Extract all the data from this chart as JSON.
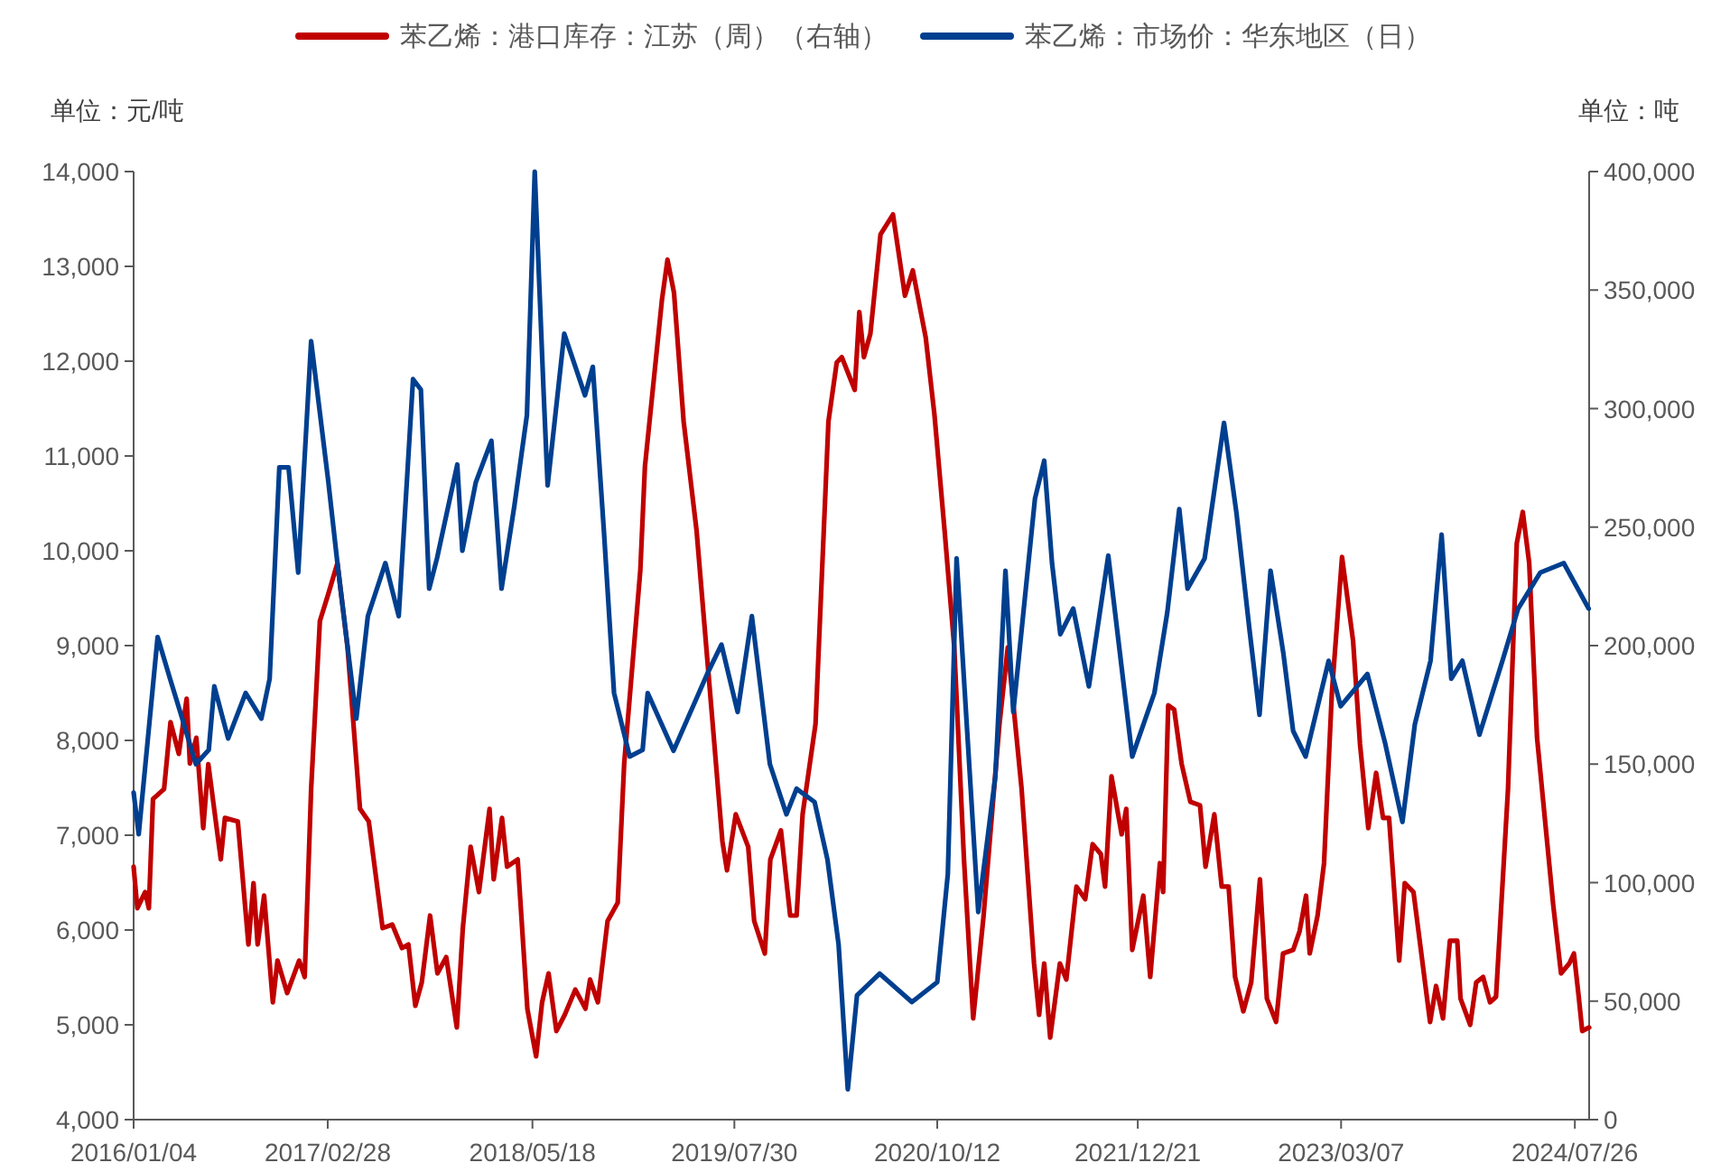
{
  "chart_data": {
    "type": "line",
    "xlim": [
      "2016-01-04",
      "2024-08-26"
    ],
    "xticks": [
      {
        "value": "2016-01-04",
        "label": "2016/01/04"
      },
      {
        "value": "2017-02-28",
        "label": "2017/02/28"
      },
      {
        "value": "2018-05-18",
        "label": "2018/05/18"
      },
      {
        "value": "2019-07-30",
        "label": "2019/07/30"
      },
      {
        "value": "2020-10-12",
        "label": "2020/10/12"
      },
      {
        "value": "2021-12-21",
        "label": "2021/12/21"
      },
      {
        "value": "2023-03-07",
        "label": "2023/03/07"
      },
      {
        "value": "2024-07-26",
        "label": "2024/07/26"
      }
    ],
    "ylim": [
      4000,
      14000
    ],
    "yticks": [
      {
        "value": 4000,
        "label": "4,000"
      },
      {
        "value": 5000,
        "label": "5,000"
      },
      {
        "value": 6000,
        "label": "6,000"
      },
      {
        "value": 7000,
        "label": "7,000"
      },
      {
        "value": 8000,
        "label": "8,000"
      },
      {
        "value": 9000,
        "label": "9,000"
      },
      {
        "value": 10000,
        "label": "10,000"
      },
      {
        "value": 11000,
        "label": "11,000"
      },
      {
        "value": 12000,
        "label": "12,000"
      },
      {
        "value": 13000,
        "label": "13,000"
      },
      {
        "value": 14000,
        "label": "14,000"
      }
    ],
    "y2lim": [
      0,
      400000
    ],
    "y2ticks": [
      0,
      {
        "value": 50000,
        "label": "50,000"
      },
      {
        "value": 100000,
        "label": "100,000"
      },
      {
        "value": 150000,
        "label": "150,000"
      },
      {
        "value": 200000,
        "label": "200,000"
      },
      {
        "value": 250000,
        "label": "250,000"
      },
      {
        "value": 300000,
        "label": "300,000"
      },
      {
        "value": 350000,
        "label": "350,000"
      },
      {
        "value": 400000,
        "label": "400,000"
      }
    ],
    "legend": "top",
    "annotations": [
      "单位：元/吨",
      "单位：吨"
    ],
    "series": [
      {
        "name": "苯乙烯：港口库存：江苏（周）（右轴）",
        "color": "#c00000",
        "axis": "y2",
        "x": [
          "2016-01-04",
          "2016-01-12",
          "2016-01-29",
          "2016-02-06",
          "2016-02-15",
          "2016-03-10",
          "2016-03-24",
          "2016-04-11",
          "2016-04-28",
          "2016-05-05",
          "2016-05-19",
          "2016-06-03",
          "2016-06-14",
          "2016-07-11",
          "2016-07-20",
          "2016-08-17",
          "2016-09-09",
          "2016-09-20",
          "2016-09-29",
          "2016-10-13",
          "2016-11-01",
          "2016-11-11",
          "2016-12-02",
          "2016-12-28",
          "2017-01-09",
          "2017-01-23",
          "2017-02-11",
          "2017-02-28",
          "2017-03-21",
          "2017-04-12",
          "2017-05-09",
          "2017-05-28",
          "2017-06-27",
          "2017-07-18",
          "2017-08-08",
          "2017-08-22",
          "2017-09-06",
          "2017-09-20",
          "2017-10-08",
          "2017-10-24",
          "2017-11-12",
          "2017-12-05",
          "2017-12-18",
          "2018-01-04",
          "2018-01-22",
          "2018-02-14",
          "2018-02-23",
          "2018-03-13",
          "2018-03-24",
          "2018-04-16",
          "2018-05-07",
          "2018-05-26",
          "2018-06-08",
          "2018-06-22",
          "2018-07-09",
          "2018-07-27",
          "2018-08-19",
          "2018-09-10",
          "2018-09-20",
          "2018-10-07",
          "2018-10-28",
          "2018-11-19",
          "2018-12-03",
          "2019-01-07",
          "2019-01-17",
          "2019-02-23",
          "2019-03-07",
          "2019-03-21",
          "2019-04-11",
          "2019-05-09",
          "2019-06-13",
          "2019-07-04",
          "2019-07-14",
          "2019-08-02",
          "2019-08-29",
          "2019-09-11",
          "2019-10-04",
          "2019-10-16",
          "2019-11-08",
          "2019-11-28",
          "2019-12-12",
          "2019-12-25",
          "2020-01-22",
          "2020-02-19",
          "2020-03-08",
          "2020-03-19",
          "2020-04-16",
          "2020-04-26",
          "2020-05-06",
          "2020-05-20",
          "2020-06-11",
          "2020-07-08",
          "2020-08-03",
          "2020-08-20",
          "2020-09-17",
          "2020-10-06",
          "2020-10-28",
          "2020-11-18",
          "2020-12-09",
          "2020-12-29",
          "2021-01-20",
          "2021-02-24",
          "2021-03-14",
          "2021-04-13",
          "2021-05-10",
          "2021-05-21",
          "2021-06-01",
          "2021-06-14",
          "2021-07-05",
          "2021-07-19",
          "2021-08-10",
          "2021-08-29",
          "2021-09-14",
          "2021-10-02",
          "2021-10-11",
          "2021-10-25",
          "2021-11-16",
          "2021-11-26",
          "2021-12-09",
          "2022-01-02",
          "2022-01-17",
          "2022-02-07",
          "2022-02-14",
          "2022-02-25",
          "2022-03-10",
          "2022-03-26",
          "2022-04-14",
          "2022-05-05",
          "2022-05-17",
          "2022-06-05",
          "2022-06-21",
          "2022-07-06",
          "2022-07-20",
          "2022-08-07",
          "2022-08-24",
          "2022-09-12",
          "2022-09-27",
          "2022-10-17",
          "2022-11-01",
          "2022-11-23",
          "2022-12-07",
          "2022-12-21",
          "2022-12-29",
          "2023-01-15",
          "2023-01-29",
          "2023-02-15",
          "2023-03-09",
          "2023-04-02",
          "2023-04-17",
          "2023-05-05",
          "2023-05-22",
          "2023-06-06",
          "2023-06-19",
          "2023-07-11",
          "2023-07-23",
          "2023-08-11",
          "2023-08-20",
          "2023-09-16",
          "2023-09-29",
          "2023-10-14",
          "2023-10-29",
          "2023-11-14",
          "2023-11-21",
          "2023-12-12",
          "2023-12-25",
          "2024-01-09",
          "2024-01-24",
          "2024-02-06",
          "2024-03-03",
          "2024-03-22",
          "2024-04-04",
          "2024-04-18",
          "2024-05-05",
          "2024-06-09",
          "2024-06-26",
          "2024-07-14",
          "2024-07-24",
          "2024-08-03",
          "2024-08-11",
          "2024-08-26"
        ],
        "values": [
          106700,
          89200,
          96000,
          89200,
          135300,
          139500,
          167700,
          154300,
          177600,
          150200,
          161100,
          123000,
          150000,
          109800,
          127300,
          125800,
          73900,
          99800,
          73900,
          94500,
          49500,
          67100,
          53400,
          67100,
          60200,
          139500,
          210400,
          221000,
          234800,
          199200,
          131100,
          125800,
          80800,
          82300,
          72400,
          73900,
          48000,
          57900,
          86100,
          61700,
          68600,
          38900,
          80800,
          115100,
          96000,
          131100,
          101400,
          127300,
          106700,
          109800,
          46800,
          26700,
          49500,
          61700,
          37400,
          44200,
          54900,
          46800,
          59100,
          49500,
          83800,
          91500,
          150200,
          231700,
          275500,
          346000,
          362800,
          349000,
          294500,
          248500,
          166900,
          117400,
          105200,
          128800,
          115100,
          83800,
          70100,
          109800,
          122000,
          86100,
          86100,
          128800,
          166900,
          294500,
          319400,
          321700,
          307900,
          340700,
          321700,
          331600,
          373500,
          381900,
          347600,
          358300,
          330000,
          297300,
          248500,
          199200,
          109800,
          42700,
          84900,
          166900,
          199200,
          139500,
          65900,
          44200,
          65900,
          34600,
          65900,
          59100,
          98300,
          93000,
          116200,
          112000,
          98300,
          144800,
          120400,
          131100,
          71600,
          94500,
          60200,
          108200,
          96000,
          174800,
          173000,
          150200,
          134100,
          132600,
          106700,
          128800,
          98300,
          98300,
          60200,
          45700,
          57900,
          101400,
          51100,
          41200,
          70100,
          71600,
          79500,
          94500,
          70100,
          86100,
          108200,
          180200,
          237400,
          202000,
          158500,
          123000,
          146300,
          127300,
          127300,
          67100,
          99800,
          96000,
          82300,
          41200,
          56400,
          42700,
          75500,
          75500,
          51100,
          40000,
          57900,
          60200,
          49500,
          51800,
          139500,
          243100,
          256400,
          234800,
          161100,
          90700,
          61700,
          65900,
          70100,
          52600,
          37400,
          38900
        ]
      },
      {
        "name": "苯乙烯：市场价：华东地区（日）",
        "color": "#003f8f",
        "x": [
          "2016-01-04",
          "2016-01-15",
          "2016-02-25",
          "2016-03-23",
          "2016-04-14",
          "2016-05-18",
          "2016-06-15",
          "2016-06-27",
          "2016-07-27",
          "2016-09-03",
          "2016-10-07",
          "2016-10-25",
          "2016-11-15",
          "2016-12-05",
          "2016-12-26",
          "2017-01-23",
          "2017-03-01",
          "2017-03-21",
          "2017-05-01",
          "2017-05-26",
          "2017-07-03",
          "2017-08-01",
          "2017-09-01",
          "2017-09-18",
          "2017-10-06",
          "2017-10-23",
          "2017-12-06",
          "2017-12-17",
          "2018-01-15",
          "2018-02-18",
          "2018-03-12",
          "2018-04-09",
          "2018-05-06",
          "2018-05-23",
          "2018-06-11",
          "2018-06-20",
          "2018-07-26",
          "2018-09-09",
          "2018-09-26",
          "2018-10-20",
          "2018-11-11",
          "2018-12-15",
          "2019-01-12",
          "2019-01-23",
          "2019-03-20",
          "2019-06-01",
          "2019-07-02",
          "2019-08-06",
          "2019-09-06",
          "2019-10-15",
          "2019-11-20",
          "2019-12-12",
          "2020-01-20",
          "2020-02-17",
          "2020-03-12",
          "2020-04-01",
          "2020-04-21",
          "2020-06-09",
          "2020-08-18",
          "2020-10-12",
          "2020-11-04",
          "2020-11-23",
          "2020-12-15",
          "2021-01-09",
          "2021-02-15",
          "2021-03-09",
          "2021-03-26",
          "2021-05-12",
          "2021-06-01",
          "2021-06-18",
          "2021-07-06",
          "2021-08-03",
          "2021-09-06",
          "2021-10-18",
          "2021-12-09",
          "2022-01-26",
          "2022-02-23",
          "2022-03-21",
          "2022-04-08",
          "2022-05-15",
          "2022-06-26",
          "2022-07-23",
          "2022-08-20",
          "2022-09-11",
          "2022-10-05",
          "2022-11-02",
          "2022-11-23",
          "2022-12-20",
          "2023-02-08",
          "2023-03-06",
          "2023-05-03",
          "2023-06-11",
          "2023-07-18",
          "2023-08-14",
          "2023-09-17",
          "2023-10-11",
          "2023-11-01",
          "2023-11-25",
          "2024-01-01",
          "2024-02-20",
          "2024-03-25",
          "2024-05-12",
          "2024-07-02",
          "2024-08-25"
        ],
        "values": [
          7450,
          7010,
          9090,
          8650,
          8300,
          7750,
          7900,
          8570,
          8020,
          8500,
          8230,
          8650,
          10880,
          10880,
          9770,
          12210,
          10740,
          9870,
          8230,
          9310,
          9870,
          9310,
          11810,
          11700,
          9600,
          9920,
          10910,
          10000,
          10720,
          11160,
          9600,
          10480,
          11430,
          14000,
          11700,
          10690,
          12290,
          11640,
          11940,
          10210,
          8500,
          7830,
          7900,
          8500,
          7890,
          8700,
          9010,
          8300,
          9310,
          7750,
          7220,
          7490,
          7350,
          6740,
          5850,
          4320,
          5310,
          5540,
          5240,
          5450,
          6590,
          9920,
          8170,
          6190,
          7620,
          9790,
          8300,
          10550,
          10950,
          9870,
          9120,
          9390,
          8570,
          9950,
          7830,
          8500,
          9350,
          10440,
          9600,
          9920,
          11350,
          10400,
          9180,
          8270,
          9790,
          8910,
          8100,
          7830,
          8840,
          8360,
          8700,
          7960,
          7140,
          8170,
          8840,
          10170,
          8650,
          8840,
          8060,
          8840,
          9390,
          9770,
          9870,
          9390
        ]
      }
    ]
  }
}
